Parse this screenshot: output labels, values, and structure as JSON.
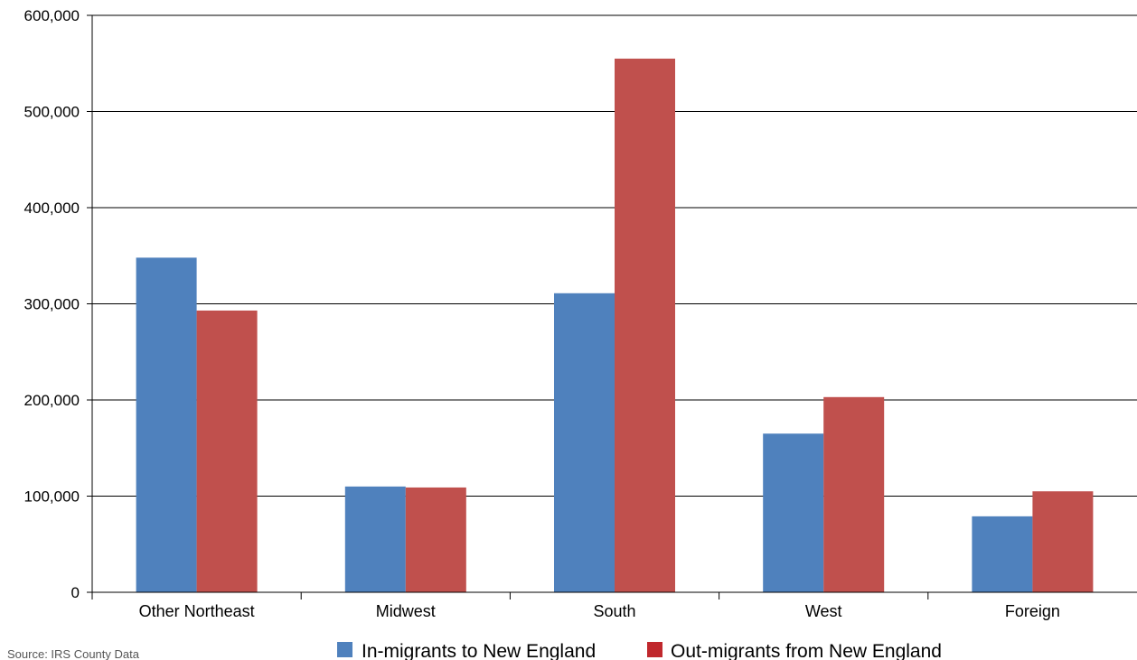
{
  "chart_data": {
    "type": "bar",
    "title": "",
    "xlabel": "",
    "ylabel": "",
    "categories": [
      "Other Northeast",
      "Midwest",
      "South",
      "West",
      "Foreign"
    ],
    "series": [
      {
        "name": "In-migrants to New England",
        "color": "#4f81bd",
        "values": [
          348000,
          110000,
          311000,
          165000,
          79000
        ]
      },
      {
        "name": "Out-migrants from New England",
        "color": "#c0504d",
        "values": [
          293000,
          109000,
          555000,
          203000,
          105000
        ]
      }
    ],
    "ylim": [
      0,
      600000
    ],
    "yticks": [
      0,
      100000,
      200000,
      300000,
      400000,
      500000,
      600000
    ],
    "ytick_labels": [
      "0",
      "100,000",
      "200,000",
      "300,000",
      "400,000",
      "500,000",
      "600,000"
    ],
    "grid": true,
    "legend_position": "bottom"
  },
  "source_note": "Source:  IRS County Data"
}
